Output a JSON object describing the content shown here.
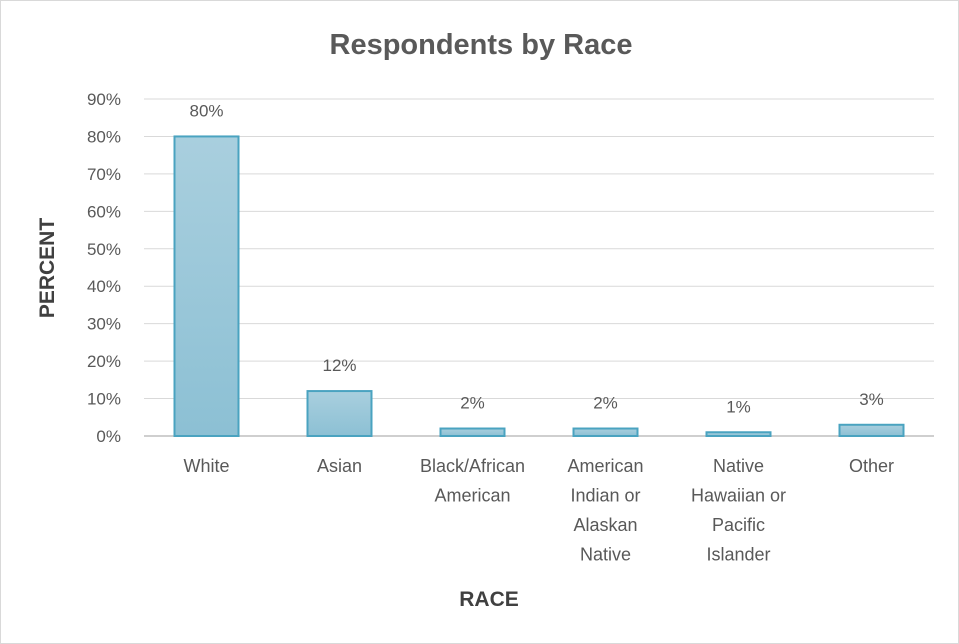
{
  "chart_data": {
    "type": "bar",
    "title": "Respondents by Race",
    "xlabel": "RACE",
    "ylabel": "PERCENT",
    "categories": [
      [
        "White"
      ],
      [
        "Asian"
      ],
      [
        "Black/African",
        "American"
      ],
      [
        "American",
        "Indian or",
        "Alaskan",
        "Native"
      ],
      [
        "Native",
        "Hawaiian or",
        "Pacific",
        "Islander"
      ],
      [
        "Other"
      ]
    ],
    "values": [
      80,
      12,
      2,
      2,
      1,
      3
    ],
    "data_labels": [
      "80%",
      "12%",
      "2%",
      "2%",
      "1%",
      "3%"
    ],
    "ylim": [
      0,
      90
    ],
    "y_ticks": [
      0,
      10,
      20,
      30,
      40,
      50,
      60,
      70,
      80,
      90
    ],
    "y_tick_labels": [
      "0%",
      "10%",
      "20%",
      "30%",
      "40%",
      "50%",
      "60%",
      "70%",
      "80%",
      "90%"
    ],
    "grid": true,
    "legend": "none",
    "colors": {
      "bar_fill_top": "#a9cfde",
      "bar_fill_bottom": "#8cc0d4",
      "bar_stroke": "#4aa3c0",
      "grid": "#d9d9d9",
      "axis": "#bfbfbf"
    }
  }
}
